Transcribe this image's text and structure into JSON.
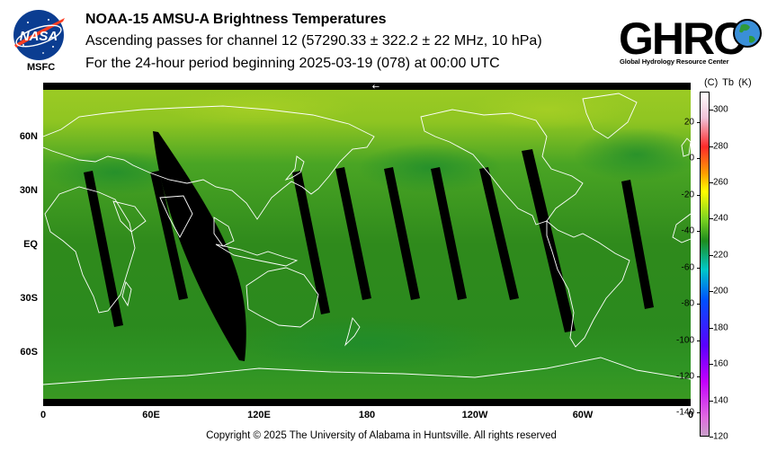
{
  "header": {
    "title": "NOAA-15 AMSU-A Brightness Temperatures",
    "subtitle": "Ascending passes for channel 12 (57290.33 ± 322.2 ± 22 MHz, 10 hPa)",
    "period": "For the 24-hour period beginning 2025-03-19 (078) at 00:00 UTC"
  },
  "logos": {
    "nasa_text": "NASA",
    "center_label": "MSFC",
    "ghrc_text": "GHRC",
    "ghrc_subtitle": "Global Hydrology Resource Center"
  },
  "map": {
    "projection": "equirectangular",
    "lat_labels": [
      "60N",
      "30N",
      "EQ",
      "30S",
      "60S"
    ],
    "lat_values": [
      60,
      30,
      0,
      -30,
      -60
    ],
    "lon_labels": [
      "0",
      "60E",
      "120E",
      "180",
      "120W",
      "60W",
      "0"
    ],
    "lon_values": [
      0,
      60,
      120,
      180,
      240,
      300,
      360
    ],
    "direction_arrow": "←",
    "colors": {
      "field_low": "#247a18",
      "field_mid": "#3c9a22",
      "field_high": "#9ecc24",
      "swath_gap": "#000000",
      "coastline": "#ffffff"
    },
    "swath_gaps": [
      {
        "lon_north": 25,
        "lon_south": 42,
        "lat_top": 40,
        "lat_bottom": -45,
        "width_deg": 5
      },
      {
        "lon_north": 62,
        "lon_south": 78,
        "lat_top": 40,
        "lat_bottom": -30,
        "width_deg": 5
      },
      {
        "lon_north": 141,
        "lon_south": 157,
        "lat_top": 40,
        "lat_bottom": -38,
        "width_deg": 5
      },
      {
        "lon_north": 165,
        "lon_south": 180,
        "lat_top": 42,
        "lat_bottom": -30,
        "width_deg": 5
      },
      {
        "lon_north": 192,
        "lon_south": 207,
        "lat_top": 42,
        "lat_bottom": -30,
        "width_deg": 5
      },
      {
        "lon_north": 218,
        "lon_south": 233,
        "lat_top": 42,
        "lat_bottom": -30,
        "width_deg": 5
      },
      {
        "lon_north": 245,
        "lon_south": 262,
        "lat_top": 42,
        "lat_bottom": -30,
        "width_deg": 5
      },
      {
        "lon_north": 269,
        "lon_south": 293,
        "lat_top": 52,
        "lat_bottom": -48,
        "width_deg": 6
      },
      {
        "lon_north": 324,
        "lon_south": 337,
        "lat_top": 35,
        "lat_bottom": -35,
        "width_deg": 5
      }
    ],
    "large_gap": {
      "lon_north": 61,
      "lon_south": 111,
      "lat_top": 63,
      "lat_bottom": -65
    }
  },
  "colorbar": {
    "header": "(C)  Tb  (K)",
    "celsius_ticks": [
      "20",
      "0",
      "-20",
      "-40",
      "-60",
      "-80",
      "-100",
      "-120",
      "-140"
    ],
    "celsius_values": [
      20,
      0,
      -20,
      -40,
      -60,
      -80,
      -100,
      -120,
      -140
    ],
    "kelvin_ticks": [
      "300",
      "280",
      "260",
      "240",
      "220",
      "200",
      "180",
      "160",
      "140",
      "120"
    ],
    "kelvin_values": [
      300,
      280,
      260,
      240,
      220,
      200,
      180,
      160,
      140,
      120
    ],
    "kelvin_range": [
      120,
      310
    ],
    "color_stops": [
      {
        "k": 310,
        "color": "#ffffff"
      },
      {
        "k": 296,
        "color": "#f2c2d8"
      },
      {
        "k": 280,
        "color": "#ff2a2a"
      },
      {
        "k": 265,
        "color": "#ffa000"
      },
      {
        "k": 255,
        "color": "#ffff00"
      },
      {
        "k": 240,
        "color": "#7ed321"
      },
      {
        "k": 228,
        "color": "#1e8c1e"
      },
      {
        "k": 212,
        "color": "#00c8c8"
      },
      {
        "k": 195,
        "color": "#0050ff"
      },
      {
        "k": 170,
        "color": "#5a00ff"
      },
      {
        "k": 150,
        "color": "#c300ff"
      },
      {
        "k": 130,
        "color": "#e06be0"
      },
      {
        "k": 120,
        "color": "#c8a0c8"
      }
    ]
  },
  "footer": {
    "copyright": "Copyright © 2025 The University of Alabama in Huntsville.  All rights reserved"
  }
}
